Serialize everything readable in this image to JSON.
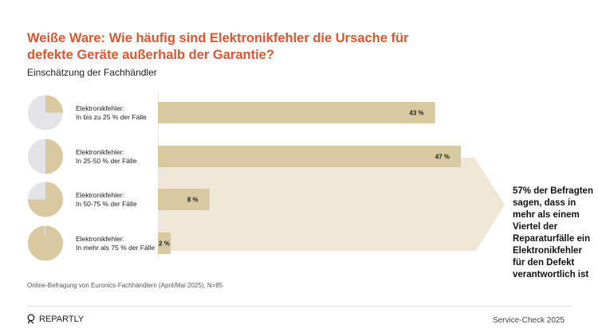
{
  "title": "Weiße Ware: Wie häufig sind Elektronikfehler die Ursache für defekte Geräte außerhalb der Garantie?",
  "subtitle": "Einschätzung der Fachhändler",
  "chart_data": {
    "type": "bar",
    "orientation": "horizontal",
    "categories": [
      [
        "Elektronikfehler:",
        "In bis zu 25 % der Fälle"
      ],
      [
        "Elektronikfehler:",
        "In 25-50 % der Fälle"
      ],
      [
        "Elektronikfehler:",
        "In 50-75 % der Fälle"
      ],
      [
        "Elektronikfehler:",
        "In mehr als 75 % der Fälle"
      ]
    ],
    "values": [
      43,
      47,
      8,
      2
    ],
    "value_labels": [
      "43 %",
      "47 %",
      "8 %",
      "2 %"
    ],
    "pie_icon_fractions": [
      0.25,
      0.5,
      0.75,
      0.99
    ],
    "xlim": [
      0,
      50
    ],
    "grid": false,
    "colors": {
      "bar": "#d9c9a0",
      "arrow": "#efe6d6",
      "pie_empty": "#e3e3e8",
      "title": "#e0542e"
    },
    "annotation": "57% der Befragten sagen, dass in mehr als einem Viertel der Reparaturfälle ein Elektronikfehler für den Defekt verantwortlich ist"
  },
  "source": "Online-Befragung von Euronics-Fachhändlern (April/Mai 2025), N=85",
  "footer": {
    "logo": "REPARTLY",
    "brand": "Service-Check 2025"
  }
}
